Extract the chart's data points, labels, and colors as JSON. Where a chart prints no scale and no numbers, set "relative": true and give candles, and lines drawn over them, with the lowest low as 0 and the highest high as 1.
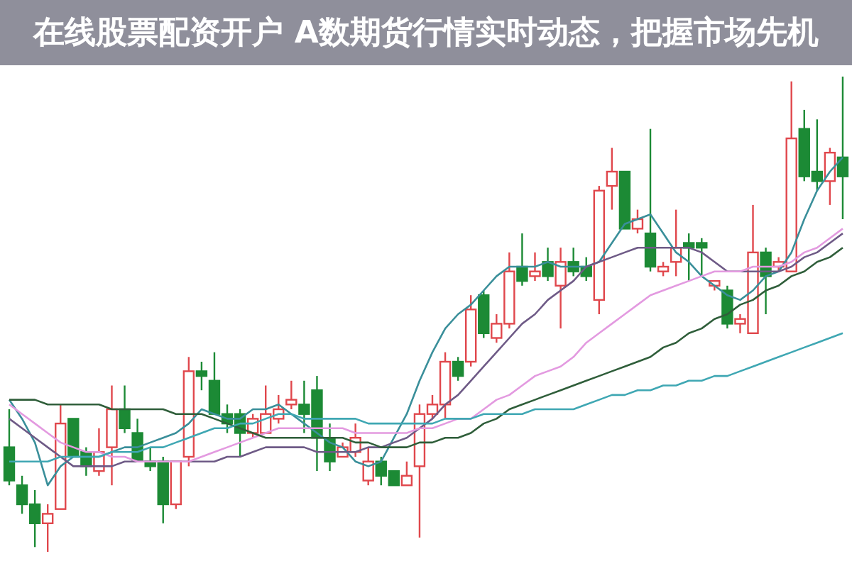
{
  "chart_data": {
    "type": "candlestick",
    "title": "在线股票配资开户 A数期货行情实时动态，把握市场先机",
    "relative": true,
    "marker": "none",
    "legend": false,
    "categories": [
      null,
      null,
      null,
      null,
      null,
      null,
      null,
      null,
      null,
      null,
      null,
      null,
      null,
      null,
      null,
      null,
      null,
      null,
      null,
      null,
      null,
      null,
      null,
      null,
      null,
      null,
      null,
      null,
      null,
      null,
      null,
      null,
      null,
      null,
      null,
      null,
      null,
      null,
      null,
      null,
      null,
      null,
      null,
      null,
      null,
      null,
      null,
      null,
      null,
      null,
      null,
      null,
      null,
      null,
      null,
      null,
      null,
      null,
      null,
      null,
      null,
      null,
      null,
      null,
      null,
      null
    ],
    "ohlc": [
      [
        0.22,
        0.3,
        0.14,
        0.15
      ],
      [
        0.14,
        0.16,
        0.08,
        0.1
      ],
      [
        0.1,
        0.13,
        0.01,
        0.06
      ],
      [
        0.06,
        0.1,
        0,
        0.08
      ],
      [
        0.09,
        0.31,
        0.09,
        0.27
      ],
      [
        0.28,
        0.28,
        0.2,
        0.2
      ],
      [
        0.21,
        0.22,
        0.16,
        0.18
      ],
      [
        0.17,
        0.26,
        0.16,
        0.21
      ],
      [
        0.22,
        0.35,
        0.14,
        0.3
      ],
      [
        0.3,
        0.35,
        0.25,
        0.26
      ],
      [
        0.25,
        0.28,
        0.19,
        0.19
      ],
      [
        0.19,
        0.22,
        0.17,
        0.18
      ],
      [
        0.19,
        0.2,
        0.06,
        0.1
      ],
      [
        0.1,
        0.19,
        0.09,
        0.19
      ],
      [
        0.2,
        0.41,
        0.18,
        0.38
      ],
      [
        0.38,
        0.4,
        0.34,
        0.37
      ],
      [
        0.36,
        0.42,
        0.29,
        0.29
      ],
      [
        0.29,
        0.31,
        0.25,
        0.27
      ],
      [
        0.29,
        0.3,
        0.2,
        0.25
      ],
      [
        0.25,
        0.29,
        0.24,
        0.28
      ],
      [
        0.25,
        0.35,
        0.25,
        0.29
      ],
      [
        0.28,
        0.33,
        0.27,
        0.3
      ],
      [
        0.31,
        0.36,
        0.3,
        0.32
      ],
      [
        0.31,
        0.36,
        0.25,
        0.29
      ],
      [
        0.34,
        0.37,
        0.17,
        0.24
      ],
      [
        0.24,
        0.27,
        0.17,
        0.19
      ],
      [
        0.2,
        0.23,
        0.2,
        0.22
      ],
      [
        0.21,
        0.27,
        0.2,
        0.24
      ],
      [
        0.15,
        0.22,
        0.14,
        0.19
      ],
      [
        0.19,
        0.2,
        0.14,
        0.16
      ],
      [
        0.17,
        0.17,
        0.14,
        0.14
      ],
      [
        0.14,
        0.19,
        0.14,
        0.16
      ],
      [
        0.18,
        0.31,
        0.03,
        0.29
      ],
      [
        0.29,
        0.33,
        0.28,
        0.31
      ],
      [
        0.31,
        0.42,
        0.28,
        0.4
      ],
      [
        0.4,
        0.41,
        0.36,
        0.37
      ],
      [
        0.4,
        0.54,
        0.39,
        0.51
      ],
      [
        0.54,
        0.55,
        0.45,
        0.46
      ],
      [
        0.45,
        0.5,
        0.44,
        0.48
      ],
      [
        0.48,
        0.63,
        0.47,
        0.59
      ],
      [
        0.6,
        0.67,
        0.56,
        0.57
      ],
      [
        0.58,
        0.63,
        0.57,
        0.59
      ],
      [
        0.61,
        0.64,
        0.57,
        0.58
      ],
      [
        0.56,
        0.64,
        0.47,
        0.61
      ],
      [
        0.61,
        0.64,
        0.58,
        0.59
      ],
      [
        0.6,
        0.62,
        0.57,
        0.58
      ],
      [
        0.53,
        0.77,
        0.5,
        0.76
      ],
      [
        0.77,
        0.85,
        0.72,
        0.8
      ],
      [
        0.8,
        0.8,
        0.68,
        0.68
      ],
      [
        0.68,
        0.72,
        0.67,
        0.7
      ],
      [
        0.67,
        0.89,
        0.59,
        0.6
      ],
      [
        0.59,
        0.61,
        0.58,
        0.6
      ],
      [
        0.61,
        0.72,
        0.58,
        0.64
      ],
      [
        0.65,
        0.67,
        0.57,
        0.64
      ],
      [
        0.65,
        0.66,
        0.58,
        0.64
      ],
      [
        0.56,
        0.57,
        0.55,
        0.57
      ],
      [
        0.55,
        0.56,
        0.47,
        0.48
      ],
      [
        0.48,
        0.5,
        0.46,
        0.49
      ],
      [
        0.46,
        0.73,
        0.46,
        0.63
      ],
      [
        0.63,
        0.64,
        0.5,
        0.58
      ],
      [
        0.6,
        0.62,
        0.59,
        0.61
      ],
      [
        0.59,
        0.99,
        0.59,
        0.87
      ],
      [
        0.89,
        0.93,
        0.78,
        0.79
      ],
      [
        0.8,
        0.91,
        0.76,
        0.78
      ],
      [
        0.78,
        0.85,
        0.73,
        0.84
      ],
      [
        0.83,
        1,
        0.7,
        0.79
      ]
    ],
    "colors": [
      "#1c8a35",
      "#1c8a35",
      "#1c8a35",
      "#e0474c",
      "#e0474c",
      "#1c8a35",
      "#1c8a35",
      "#e0474c",
      "#e0474c",
      "#1c8a35",
      "#1c8a35",
      "#1c8a35",
      "#1c8a35",
      "#e0474c",
      "#e0474c",
      "#1c8a35",
      "#1c8a35",
      "#1c8a35",
      "#1c8a35",
      "#e0474c",
      "#e0474c",
      "#e0474c",
      "#e0474c",
      "#1c8a35",
      "#1c8a35",
      "#1c8a35",
      "#e0474c",
      "#e0474c",
      "#e0474c",
      "#1c8a35",
      "#1c8a35",
      "#e0474c",
      "#e0474c",
      "#e0474c",
      "#e0474c",
      "#1c8a35",
      "#e0474c",
      "#1c8a35",
      "#e0474c",
      "#e0474c",
      "#1c8a35",
      "#e0474c",
      "#1c8a35",
      "#e0474c",
      "#1c8a35",
      "#1c8a35",
      "#e0474c",
      "#e0474c",
      "#1c8a35",
      "#e0474c",
      "#1c8a35",
      "#e0474c",
      "#e0474c",
      "#1c8a35",
      "#1c8a35",
      "#e0474c",
      "#1c8a35",
      "#e0474c",
      "#e0474c",
      "#1c8a35",
      "#e0474c",
      "#e0474c",
      "#1c8a35",
      "#1c8a35",
      "#e0474c",
      "#1c8a35"
    ],
    "series": [
      {
        "type": "line",
        "color": "#3a8f9a",
        "values": [
          0.32,
          0.28,
          0.23,
          0.14,
          0.18,
          0.2,
          0.2,
          0.2,
          0.21,
          0.22,
          0.22,
          0.23,
          0.24,
          0.25,
          0.27,
          0.3,
          0.29,
          0.28,
          0.28,
          0.3,
          0.3,
          0.31,
          0.29,
          0.27,
          0.25,
          0.23,
          0.22,
          0.19,
          0.18,
          0.19,
          0.24,
          0.29,
          0.36,
          0.42,
          0.47,
          0.5,
          0.52,
          0.55,
          0.58,
          0.6,
          0.6,
          0.6,
          0.61,
          0.6,
          0.6,
          0.6,
          0.61,
          0.65,
          0.69,
          0.7,
          0.71,
          0.67,
          0.63,
          0.61,
          0.58,
          0.56,
          0.54,
          0.53,
          0.55,
          0.58,
          0.59,
          0.63,
          0.7,
          0.76,
          0.8,
          0.83
        ]
      },
      {
        "type": "line",
        "color": "#6e5a86",
        "values": [
          0.28,
          0.26,
          0.24,
          0.22,
          0.2,
          0.18,
          0.18,
          0.18,
          0.18,
          0.19,
          0.19,
          0.19,
          0.19,
          0.19,
          0.19,
          0.19,
          0.19,
          0.2,
          0.2,
          0.21,
          0.22,
          0.22,
          0.22,
          0.22,
          0.21,
          0.21,
          0.21,
          0.21,
          0.22,
          0.22,
          0.23,
          0.24,
          0.26,
          0.28,
          0.31,
          0.33,
          0.36,
          0.39,
          0.42,
          0.45,
          0.48,
          0.5,
          0.53,
          0.55,
          0.57,
          0.6,
          0.61,
          0.62,
          0.63,
          0.64,
          0.64,
          0.64,
          0.64,
          0.64,
          0.63,
          0.61,
          0.59,
          0.59,
          0.59,
          0.59,
          0.59,
          0.6,
          0.62,
          0.63,
          0.65,
          0.67
        ]
      },
      {
        "type": "line",
        "color": "#e39ae0",
        "values": [
          0.31,
          0.29,
          0.27,
          0.25,
          0.23,
          0.22,
          0.21,
          0.21,
          0.2,
          0.2,
          0.19,
          0.19,
          0.19,
          0.19,
          0.19,
          0.2,
          0.21,
          0.22,
          0.23,
          0.24,
          0.25,
          0.26,
          0.26,
          0.26,
          0.26,
          0.26,
          0.26,
          0.25,
          0.25,
          0.25,
          0.25,
          0.25,
          0.26,
          0.26,
          0.27,
          0.28,
          0.28,
          0.3,
          0.32,
          0.33,
          0.35,
          0.37,
          0.38,
          0.39,
          0.41,
          0.44,
          0.46,
          0.48,
          0.5,
          0.52,
          0.54,
          0.55,
          0.56,
          0.57,
          0.58,
          0.59,
          0.59,
          0.59,
          0.6,
          0.6,
          0.6,
          0.61,
          0.63,
          0.64,
          0.66,
          0.68
        ]
      },
      {
        "type": "line",
        "color": "#2f5e3a",
        "values": [
          0.32,
          0.32,
          0.32,
          0.31,
          0.31,
          0.31,
          0.31,
          0.31,
          0.3,
          0.3,
          0.3,
          0.3,
          0.3,
          0.29,
          0.29,
          0.29,
          0.28,
          0.27,
          0.26,
          0.25,
          0.24,
          0.24,
          0.24,
          0.24,
          0.24,
          0.24,
          0.24,
          0.23,
          0.23,
          0.22,
          0.22,
          0.22,
          0.23,
          0.23,
          0.24,
          0.24,
          0.25,
          0.27,
          0.28,
          0.3,
          0.31,
          0.32,
          0.33,
          0.34,
          0.35,
          0.36,
          0.37,
          0.38,
          0.39,
          0.4,
          0.41,
          0.43,
          0.44,
          0.46,
          0.47,
          0.49,
          0.5,
          0.52,
          0.53,
          0.55,
          0.56,
          0.58,
          0.59,
          0.61,
          0.62,
          0.64
        ]
      },
      {
        "type": "line",
        "color": "#3fa7b3",
        "values": [
          0.19,
          0.19,
          0.19,
          0.19,
          0.2,
          0.2,
          0.2,
          0.2,
          0.21,
          0.21,
          0.21,
          0.22,
          0.22,
          0.23,
          0.24,
          0.25,
          0.26,
          0.26,
          0.27,
          0.27,
          0.28,
          0.29,
          0.29,
          0.28,
          0.28,
          0.28,
          0.28,
          0.28,
          0.27,
          0.27,
          0.27,
          0.27,
          0.27,
          0.27,
          0.28,
          0.28,
          0.28,
          0.29,
          0.29,
          0.29,
          0.29,
          0.3,
          0.3,
          0.3,
          0.3,
          0.31,
          0.32,
          0.33,
          0.33,
          0.34,
          0.34,
          0.35,
          0.35,
          0.36,
          0.36,
          0.37,
          0.37,
          0.38,
          0.39,
          0.4,
          0.41,
          0.42,
          0.43,
          0.44,
          0.45,
          0.46
        ]
      }
    ]
  }
}
